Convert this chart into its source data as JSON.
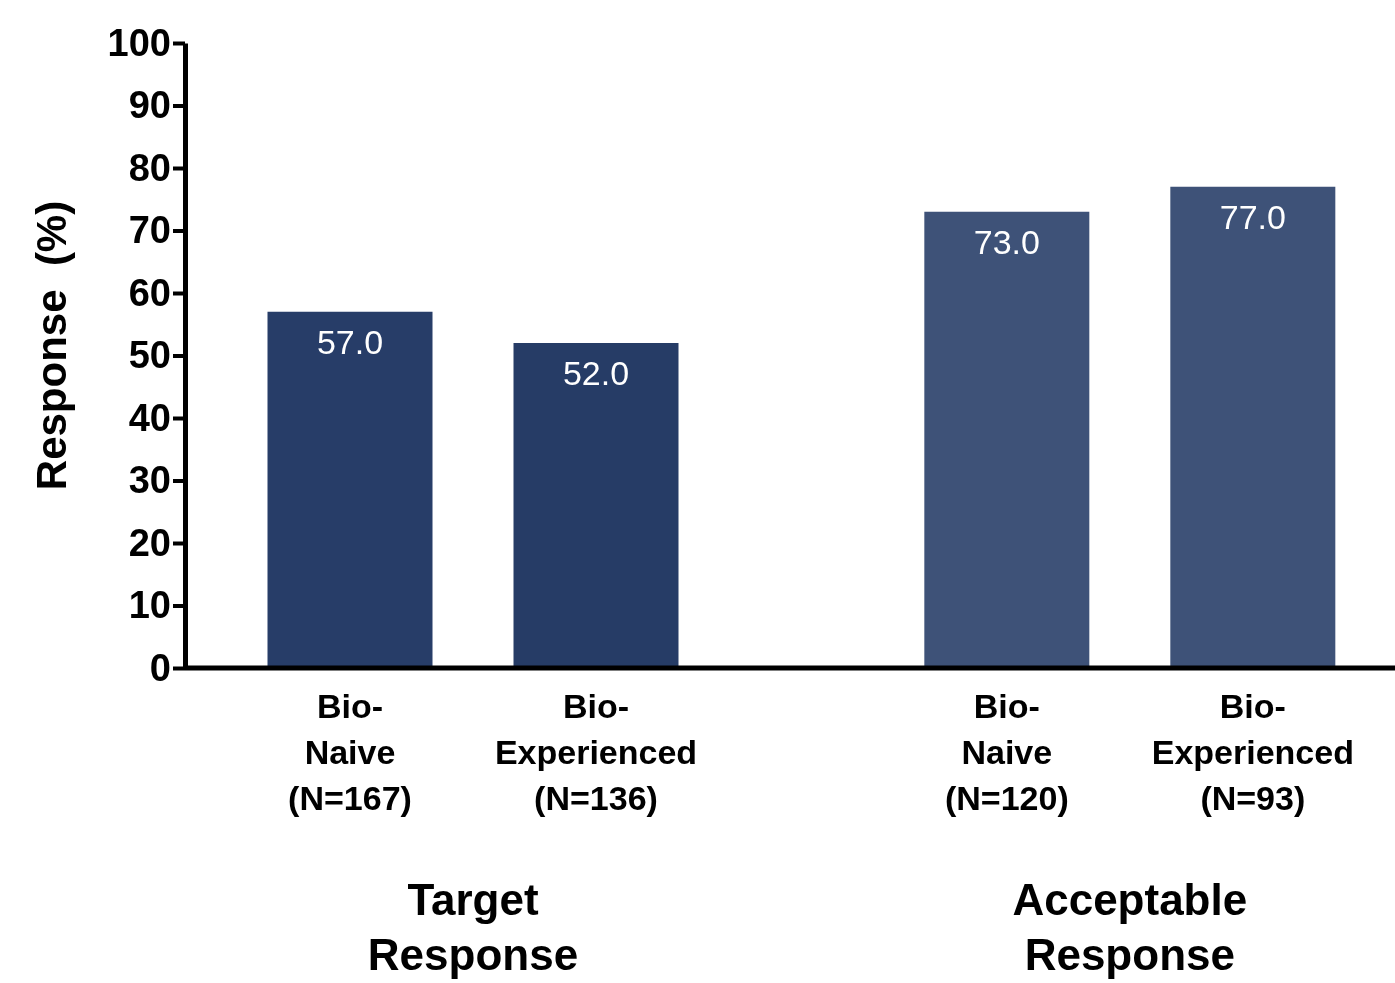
{
  "chart_data": {
    "type": "bar",
    "ylabel": "Response  (%)",
    "categories": [
      "Bio-Naive (N=167)",
      "Bio-Experienced (N=136)",
      "Bio-Naive (N=120)",
      "Bio-Experienced (N=93)"
    ],
    "values": [
      57.0,
      52.0,
      73.0,
      77.0
    ],
    "colors": [
      "#273d68",
      "#263c66",
      "#3e5278",
      "#3e5278"
    ],
    "ylim": [
      0,
      100
    ],
    "yticks": [
      0,
      10,
      20,
      30,
      40,
      50,
      60,
      70,
      80,
      90,
      100
    ],
    "value_labels": [
      "57.0",
      "52.0",
      "73.0",
      "77.0"
    ],
    "grid": false,
    "annotations": [
      "Target Response",
      "Acceptable Response"
    ]
  }
}
